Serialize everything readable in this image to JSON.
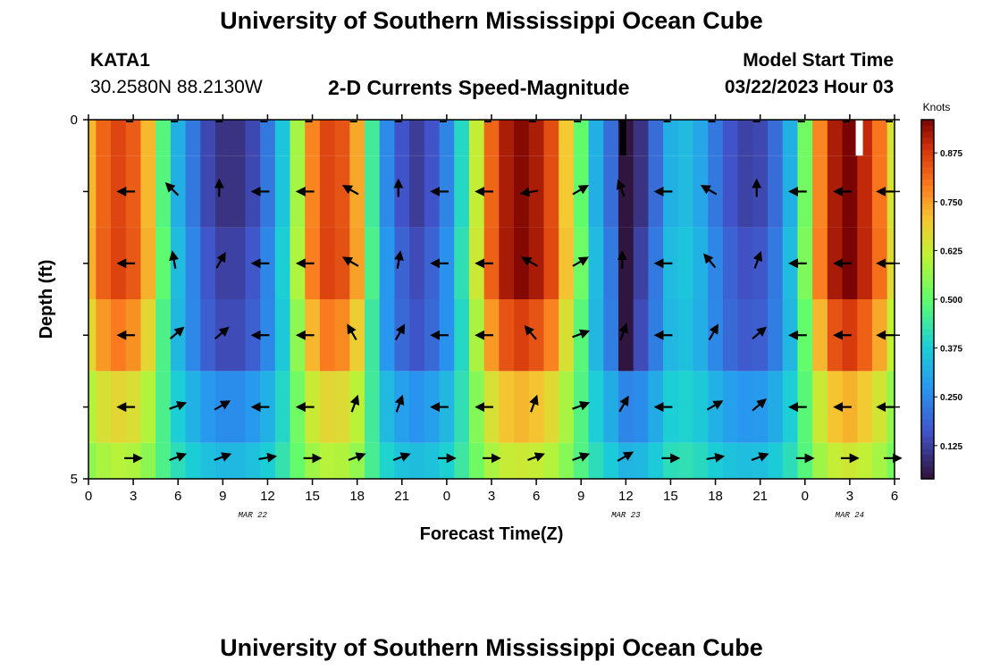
{
  "header": {
    "title": "University of Southern Mississippi Ocean Cube",
    "station": "KATA1",
    "coords": "30.2580N  88.2130W",
    "plot_title": "2-D Currents Speed-Magnitude",
    "model_label": "Model Start Time",
    "model_time": "03/22/2023 Hour 03",
    "footer_title": "University of Southern Mississippi Ocean Cube"
  },
  "chart_data": {
    "type": "heatmap",
    "title": "2-D Currents Speed-Magnitude",
    "xlabel": "Forecast Time(Z)",
    "ylabel": "Depth (ft)",
    "x_ticks": [
      "0",
      "3",
      "6",
      "9",
      "12",
      "15",
      "18",
      "21",
      "0",
      "3",
      "6",
      "9",
      "12",
      "15",
      "18",
      "21",
      "0",
      "3",
      "6"
    ],
    "x_range_hours": [
      0,
      54
    ],
    "date_labels": [
      {
        "text": "MAR 22",
        "hour": 11
      },
      {
        "text": "MAR 23",
        "hour": 36
      },
      {
        "text": "MAR 24",
        "hour": 51
      }
    ],
    "y_tick_labels": [
      "0",
      "5"
    ],
    "y_range": [
      0,
      5
    ],
    "depth_layers": [
      0.25,
      1.0,
      2.0,
      3.0,
      4.0,
      4.75
    ],
    "colorbar": {
      "label": "Knots",
      "ticks": [
        0.125,
        0.25,
        0.375,
        0.5,
        0.625,
        0.75,
        0.875
      ],
      "tick_labels": [
        "0.125",
        "0.250",
        "0.375",
        "0.500",
        "0.625",
        "0.750",
        "0.875"
      ],
      "range": [
        0.04,
        0.96
      ]
    },
    "speed_profile_knots": [
      0.72,
      0.82,
      0.86,
      0.83,
      0.72,
      0.48,
      0.32,
      0.22,
      0.14,
      0.1,
      0.1,
      0.14,
      0.22,
      0.36,
      0.58,
      0.78,
      0.86,
      0.84,
      0.74,
      0.45,
      0.25,
      0.16,
      0.12,
      0.16,
      0.24,
      0.4,
      0.62,
      0.82,
      0.92,
      0.95,
      0.92,
      0.85,
      0.7,
      0.5,
      0.32,
      0.2,
      0.08,
      0.1,
      0.2,
      0.32,
      0.34,
      0.3,
      0.22,
      0.16,
      0.13,
      0.14,
      0.2,
      0.32,
      0.52,
      0.78,
      0.92,
      0.96,
      0.9,
      0.8,
      0.65
    ],
    "layer_scale": [
      1.0,
      1.0,
      0.97,
      0.85,
      0.55,
      0.35
    ],
    "layer_floor": [
      0,
      0,
      0.03,
      0.06,
      0.2,
      0.3
    ],
    "arrow_hours": [
      3,
      6,
      9,
      12,
      15,
      18,
      21,
      24,
      27,
      30,
      33,
      36,
      39,
      42,
      45,
      48,
      51,
      54
    ],
    "arrow_directions_deg": [
      [
        180,
        135,
        90,
        180,
        180,
        150,
        90,
        180,
        180,
        190,
        30,
        110,
        180,
        150,
        90,
        180,
        180,
        180
      ],
      [
        180,
        100,
        60,
        180,
        180,
        150,
        80,
        180,
        180,
        150,
        30,
        90,
        180,
        130,
        70,
        180,
        180,
        180
      ],
      [
        180,
        40,
        40,
        180,
        180,
        120,
        60,
        180,
        180,
        130,
        20,
        70,
        180,
        60,
        40,
        180,
        180,
        180
      ],
      [
        180,
        20,
        30,
        180,
        180,
        70,
        70,
        180,
        180,
        70,
        20,
        60,
        180,
        30,
        40,
        180,
        180,
        180
      ],
      [
        0,
        20,
        20,
        10,
        0,
        20,
        20,
        0,
        0,
        20,
        20,
        30,
        0,
        10,
        20,
        0,
        0,
        0
      ]
    ]
  }
}
